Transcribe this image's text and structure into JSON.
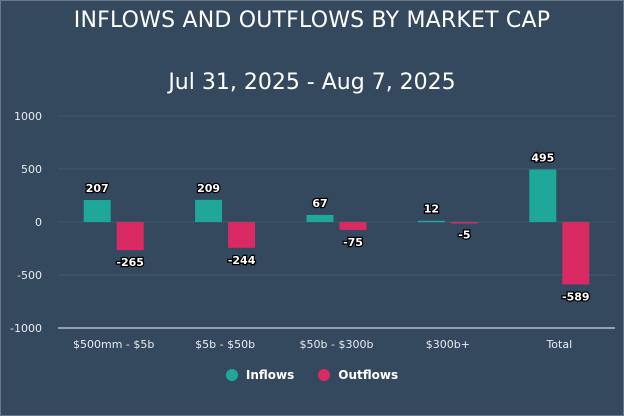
{
  "chart_data": {
    "type": "bar",
    "title": "INFLOWS AND OUTFLOWS BY MARKET CAP",
    "subtitle": "Jul 31, 2025 - Aug 7, 2025",
    "xlabel": "",
    "ylabel": "",
    "ylim": [
      -1000,
      1000
    ],
    "yticks": [
      1000,
      500,
      0,
      -500,
      -1000
    ],
    "grid": true,
    "legend_position": "bottom",
    "categories": [
      "$500mm - $5b",
      "$5b - $50b",
      "$50b - $300b",
      "$300b+",
      "Total"
    ],
    "series": [
      {
        "name": "Inflows",
        "color": "#1fa89a",
        "values": [
          207,
          209,
          67,
          12,
          495
        ]
      },
      {
        "name": "Outflows",
        "color": "#d92a63",
        "values": [
          -265,
          -244,
          -75,
          -5,
          -589
        ]
      }
    ]
  }
}
